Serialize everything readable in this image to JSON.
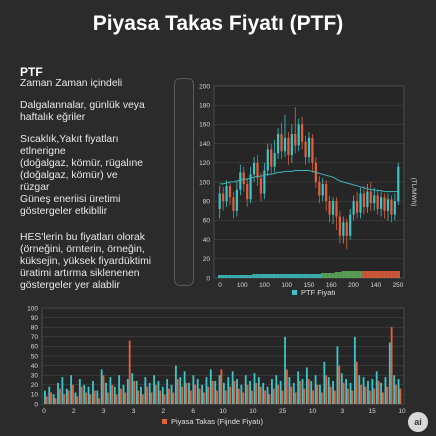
{
  "title": "Piyasa Takas Fiyatı (PTF)",
  "panel": {
    "heading": "PTF",
    "subheading": "Zaman Zaman içindeli",
    "p1_l1": "Dalgalannalar, günlük veya",
    "p1_l2": "haftalık eğriler",
    "p2_l1": "Sıcaklık,Yakıt fiyatları",
    "p2_l2": "etlnerigne",
    "p2_l3": "(doğalgaz, kömür, rügalıne",
    "p2_l4": "(doğalgaz, kömür) ve",
    "p2_l5": "rüzgar",
    "p2_l6": "Güneş eneriisi üretimi",
    "p2_l7": "göstergeler etkibllir",
    "p3_l1": "HES'lerin bu fiyatları olorak",
    "p3_l2": "(örneğini, örnterin, örneğin,",
    "p3_l3": "küksejin, yüksek fiyardüktimi",
    "p3_l4": "üratimi artırma siklenenen",
    "p3_l5": "göstergeler yer alablir"
  },
  "colors": {
    "background": "#2b2b2b",
    "up": "#3cc4c7",
    "down": "#e4603c",
    "green_volume": "#5fb35f",
    "moving_average": "#3fb6bb",
    "grid": "#4a4a4a"
  },
  "badge_text": "ai",
  "chart_data": [
    {
      "type": "candlestick",
      "title": "",
      "y_right_label": "(TL/MWh)",
      "legend": "PTF Fiyatı",
      "legend_position": "bottom",
      "grid": true,
      "ylim": [
        0,
        200
      ],
      "y_ticks": [
        "0",
        "20",
        "40",
        "60",
        "80",
        "100",
        "120",
        "140",
        "160",
        "180",
        "200"
      ],
      "x_tick_labels": [
        "0",
        "100",
        "100",
        "100",
        "150",
        "160",
        "200",
        "140",
        "250"
      ],
      "candles": [
        {
          "o": 72,
          "c": 88,
          "h": 96,
          "l": 62
        },
        {
          "o": 88,
          "c": 80,
          "h": 95,
          "l": 70
        },
        {
          "o": 80,
          "c": 96,
          "h": 102,
          "l": 74
        },
        {
          "o": 96,
          "c": 84,
          "h": 100,
          "l": 76
        },
        {
          "o": 84,
          "c": 70,
          "h": 90,
          "l": 62
        },
        {
          "o": 70,
          "c": 92,
          "h": 100,
          "l": 64
        },
        {
          "o": 92,
          "c": 110,
          "h": 118,
          "l": 86
        },
        {
          "o": 110,
          "c": 98,
          "h": 116,
          "l": 90
        },
        {
          "o": 98,
          "c": 82,
          "h": 104,
          "l": 74
        },
        {
          "o": 82,
          "c": 108,
          "h": 116,
          "l": 78
        },
        {
          "o": 108,
          "c": 120,
          "h": 126,
          "l": 100
        },
        {
          "o": 120,
          "c": 104,
          "h": 128,
          "l": 96
        },
        {
          "o": 104,
          "c": 88,
          "h": 110,
          "l": 80
        },
        {
          "o": 88,
          "c": 112,
          "h": 120,
          "l": 82
        },
        {
          "o": 112,
          "c": 134,
          "h": 140,
          "l": 106
        },
        {
          "o": 134,
          "c": 116,
          "h": 140,
          "l": 108
        },
        {
          "o": 116,
          "c": 130,
          "h": 144,
          "l": 110
        },
        {
          "o": 130,
          "c": 150,
          "h": 156,
          "l": 124
        },
        {
          "o": 150,
          "c": 132,
          "h": 162,
          "l": 124
        },
        {
          "o": 132,
          "c": 146,
          "h": 170,
          "l": 126
        },
        {
          "o": 146,
          "c": 128,
          "h": 152,
          "l": 118
        },
        {
          "o": 128,
          "c": 150,
          "h": 160,
          "l": 120
        },
        {
          "o": 150,
          "c": 138,
          "h": 178,
          "l": 130
        },
        {
          "o": 138,
          "c": 160,
          "h": 166,
          "l": 132
        },
        {
          "o": 160,
          "c": 142,
          "h": 168,
          "l": 134
        },
        {
          "o": 142,
          "c": 126,
          "h": 148,
          "l": 118
        },
        {
          "o": 126,
          "c": 146,
          "h": 152,
          "l": 120
        },
        {
          "o": 146,
          "c": 120,
          "h": 150,
          "l": 110
        },
        {
          "o": 120,
          "c": 100,
          "h": 126,
          "l": 94
        },
        {
          "o": 100,
          "c": 86,
          "h": 106,
          "l": 78
        },
        {
          "o": 86,
          "c": 98,
          "h": 104,
          "l": 80
        },
        {
          "o": 98,
          "c": 80,
          "h": 102,
          "l": 70
        },
        {
          "o": 80,
          "c": 66,
          "h": 86,
          "l": 58
        },
        {
          "o": 66,
          "c": 80,
          "h": 84,
          "l": 56
        },
        {
          "o": 80,
          "c": 64,
          "h": 84,
          "l": 50
        },
        {
          "o": 64,
          "c": 44,
          "h": 70,
          "l": 36
        },
        {
          "o": 44,
          "c": 58,
          "h": 64,
          "l": 36
        },
        {
          "o": 58,
          "c": 44,
          "h": 62,
          "l": 30
        },
        {
          "o": 44,
          "c": 66,
          "h": 72,
          "l": 40
        },
        {
          "o": 66,
          "c": 80,
          "h": 86,
          "l": 60
        },
        {
          "o": 80,
          "c": 68,
          "h": 90,
          "l": 62
        },
        {
          "o": 68,
          "c": 88,
          "h": 94,
          "l": 62
        },
        {
          "o": 88,
          "c": 74,
          "h": 96,
          "l": 66
        },
        {
          "o": 74,
          "c": 90,
          "h": 98,
          "l": 68
        },
        {
          "o": 90,
          "c": 78,
          "h": 100,
          "l": 70
        },
        {
          "o": 78,
          "c": 86,
          "h": 94,
          "l": 70
        },
        {
          "o": 86,
          "c": 72,
          "h": 92,
          "l": 66
        },
        {
          "o": 72,
          "c": 84,
          "h": 90,
          "l": 64
        },
        {
          "o": 84,
          "c": 70,
          "h": 88,
          "l": 62
        },
        {
          "o": 70,
          "c": 82,
          "h": 88,
          "l": 60
        },
        {
          "o": 82,
          "c": 66,
          "h": 86,
          "l": 58
        },
        {
          "o": 66,
          "c": 80,
          "h": 88,
          "l": 60
        },
        {
          "o": 80,
          "c": 116,
          "h": 120,
          "l": 76
        }
      ],
      "moving_average": [
        98,
        98,
        99,
        100,
        100,
        101,
        102,
        103,
        103,
        104,
        105,
        106,
        106,
        107,
        108,
        108,
        109,
        110,
        110,
        111,
        111,
        111,
        112,
        112,
        112,
        112,
        112,
        111,
        110,
        109,
        108,
        107,
        106,
        105,
        103,
        101,
        100,
        99,
        98,
        97,
        96,
        95,
        94,
        93,
        92,
        92,
        91,
        91,
        90,
        90,
        90,
        90,
        90
      ],
      "volume": [
        3,
        3,
        3,
        3,
        3,
        3,
        3,
        3,
        3,
        3,
        4,
        4,
        4,
        4,
        4,
        4,
        4,
        4,
        4,
        4,
        4,
        4,
        4,
        4,
        4,
        4,
        4,
        4,
        4,
        4,
        5,
        5,
        5,
        5,
        6,
        6,
        7,
        7,
        7,
        7,
        7,
        7,
        7,
        7,
        7,
        7,
        7,
        7,
        7,
        7,
        7,
        7,
        7
      ]
    },
    {
      "type": "bar",
      "title": "",
      "legend": "Piyasa Takas (Fijnde Fiyatı)",
      "legend_position": "bottom",
      "grid": true,
      "ylim": [
        0,
        100
      ],
      "y_ticks": [
        "0",
        "10",
        "20",
        "30",
        "40",
        "50",
        "60",
        "70",
        "80",
        "90",
        "100"
      ],
      "x_tick_labels": [
        "0",
        "2",
        "3",
        "3",
        "2",
        "6",
        "10",
        "10",
        "25",
        "10",
        "3",
        "15",
        "10"
      ],
      "teal": [
        14,
        18,
        10,
        22,
        28,
        16,
        30,
        12,
        26,
        20,
        18,
        24,
        14,
        36,
        22,
        28,
        18,
        30,
        20,
        26,
        32,
        24,
        18,
        28,
        22,
        30,
        24,
        18,
        26,
        20,
        40,
        28,
        34,
        22,
        30,
        26,
        20,
        28,
        36,
        24,
        30,
        22,
        28,
        34,
        26,
        20,
        30,
        24,
        32,
        28,
        22,
        18,
        26,
        30,
        24,
        70,
        28,
        22,
        34,
        26,
        38,
        24,
        30,
        20,
        44,
        28,
        24,
        60,
        32,
        26,
        22,
        70,
        30,
        28,
        24,
        26,
        34,
        22,
        28,
        64,
        30,
        26
      ],
      "orange": [
        8,
        12,
        6,
        16,
        10,
        14,
        20,
        8,
        18,
        12,
        10,
        14,
        6,
        30,
        12,
        20,
        10,
        16,
        12,
        66,
        24,
        14,
        10,
        18,
        12,
        20,
        14,
        10,
        16,
        12,
        26,
        18,
        22,
        14,
        20,
        16,
        12,
        18,
        24,
        14,
        36,
        14,
        18,
        24,
        16,
        12,
        20,
        14,
        22,
        18,
        14,
        10,
        16,
        20,
        14,
        36,
        18,
        12,
        24,
        16,
        26,
        14,
        20,
        12,
        30,
        18,
        14,
        40,
        22,
        16,
        14,
        44,
        20,
        18,
        14,
        16,
        24,
        12,
        18,
        80,
        20,
        16
      ]
    }
  ]
}
